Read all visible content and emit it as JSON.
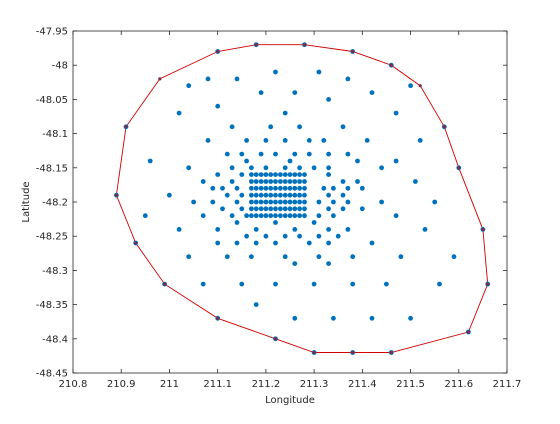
{
  "chart_data": {
    "type": "scatter",
    "title": "",
    "xlabel": "Longitude",
    "ylabel": "Latitude",
    "xlim": [
      210.8,
      211.7
    ],
    "ylim": [
      -48.45,
      -47.95
    ],
    "xticks": [
      "210.8",
      "210.9",
      "211",
      "211.1",
      "211.2",
      "211.3",
      "211.4",
      "211.5",
      "211.6",
      "211.7"
    ],
    "yticks": [
      "-47.95",
      "-48",
      "-48.05",
      "-48.1",
      "-48.15",
      "-48.2",
      "-48.25",
      "-48.3",
      "-48.35",
      "-48.4",
      "-48.45"
    ],
    "grid": false,
    "colors": {
      "points": "#0072BD",
      "hull": "#D00000",
      "axes": "#262626"
    },
    "series": [
      {
        "type": "scatter",
        "points": [
          [
            211.18,
            -47.97
          ],
          [
            211.28,
            -47.97
          ],
          [
            211.38,
            -47.98
          ],
          [
            211.1,
            -47.98
          ],
          [
            211.46,
            -48.0
          ],
          [
            211.22,
            -48.01
          ],
          [
            211.31,
            -48.01
          ],
          [
            211.08,
            -48.02
          ],
          [
            211.14,
            -48.02
          ],
          [
            211.37,
            -48.02
          ],
          [
            211.5,
            -48.03
          ],
          [
            211.04,
            -48.03
          ],
          [
            211.19,
            -48.04
          ],
          [
            211.26,
            -48.04
          ],
          [
            211.42,
            -48.04
          ],
          [
            211.1,
            -48.06
          ],
          [
            211.33,
            -48.05
          ],
          [
            211.02,
            -48.07
          ],
          [
            211.24,
            -48.07
          ],
          [
            211.47,
            -48.07
          ],
          [
            210.91,
            -48.09
          ],
          [
            211.57,
            -48.09
          ],
          [
            211.13,
            -48.09
          ],
          [
            211.21,
            -48.09
          ],
          [
            211.27,
            -48.09
          ],
          [
            211.36,
            -48.09
          ],
          [
            211.08,
            -48.11
          ],
          [
            211.16,
            -48.11
          ],
          [
            211.2,
            -48.11
          ],
          [
            211.24,
            -48.11
          ],
          [
            211.29,
            -48.11
          ],
          [
            211.32,
            -48.11
          ],
          [
            211.41,
            -48.11
          ],
          [
            211.52,
            -48.11
          ],
          [
            211.12,
            -48.13
          ],
          [
            211.15,
            -48.13
          ],
          [
            211.19,
            -48.13
          ],
          [
            211.22,
            -48.13
          ],
          [
            211.26,
            -48.13
          ],
          [
            211.29,
            -48.13
          ],
          [
            211.33,
            -48.13
          ],
          [
            211.37,
            -48.13
          ],
          [
            210.96,
            -48.14
          ],
          [
            211.16,
            -48.14
          ],
          [
            211.25,
            -48.14
          ],
          [
            211.39,
            -48.14
          ],
          [
            211.47,
            -48.14
          ],
          [
            211.04,
            -48.15
          ],
          [
            211.13,
            -48.15
          ],
          [
            211.17,
            -48.15
          ],
          [
            211.2,
            -48.15
          ],
          [
            211.24,
            -48.15
          ],
          [
            211.27,
            -48.15
          ],
          [
            211.3,
            -48.15
          ],
          [
            211.33,
            -48.15
          ],
          [
            211.44,
            -48.15
          ],
          [
            211.6,
            -48.15
          ],
          [
            211.07,
            -48.17
          ],
          [
            211.1,
            -48.16
          ],
          [
            211.13,
            -48.17
          ],
          [
            211.15,
            -48.16
          ],
          [
            211.33,
            -48.16
          ],
          [
            211.36,
            -48.17
          ],
          [
            211.39,
            -48.17
          ],
          [
            211.51,
            -48.17
          ],
          [
            211.09,
            -48.18
          ],
          [
            211.11,
            -48.18
          ],
          [
            211.14,
            -48.18
          ],
          [
            211.32,
            -48.18
          ],
          [
            211.34,
            -48.18
          ],
          [
            211.37,
            -48.18
          ],
          [
            211.4,
            -48.18
          ],
          [
            210.89,
            -48.19
          ],
          [
            211.0,
            -48.19
          ],
          [
            211.12,
            -48.19
          ],
          [
            211.15,
            -48.19
          ],
          [
            211.33,
            -48.19
          ],
          [
            211.36,
            -48.19
          ],
          [
            211.05,
            -48.2
          ],
          [
            211.09,
            -48.2
          ],
          [
            211.14,
            -48.2
          ],
          [
            211.31,
            -48.2
          ],
          [
            211.34,
            -48.2
          ],
          [
            211.37,
            -48.2
          ],
          [
            211.44,
            -48.2
          ],
          [
            211.55,
            -48.2
          ],
          [
            211.11,
            -48.21
          ],
          [
            211.15,
            -48.21
          ],
          [
            211.33,
            -48.21
          ],
          [
            211.36,
            -48.21
          ],
          [
            211.4,
            -48.21
          ],
          [
            210.95,
            -48.22
          ],
          [
            211.07,
            -48.22
          ],
          [
            211.13,
            -48.22
          ],
          [
            211.16,
            -48.22
          ],
          [
            211.31,
            -48.22
          ],
          [
            211.34,
            -48.22
          ],
          [
            211.47,
            -48.22
          ],
          [
            211.02,
            -48.24
          ],
          [
            211.1,
            -48.24
          ],
          [
            211.14,
            -48.23
          ],
          [
            211.18,
            -48.24
          ],
          [
            211.22,
            -48.23
          ],
          [
            211.26,
            -48.24
          ],
          [
            211.3,
            -48.23
          ],
          [
            211.33,
            -48.24
          ],
          [
            211.37,
            -48.24
          ],
          [
            211.53,
            -48.24
          ],
          [
            211.65,
            -48.24
          ],
          [
            211.16,
            -48.25
          ],
          [
            211.2,
            -48.25
          ],
          [
            211.24,
            -48.25
          ],
          [
            211.27,
            -48.25
          ],
          [
            211.31,
            -48.25
          ],
          [
            211.35,
            -48.25
          ],
          [
            210.93,
            -48.26
          ],
          [
            211.1,
            -48.26
          ],
          [
            211.14,
            -48.26
          ],
          [
            211.18,
            -48.26
          ],
          [
            211.22,
            -48.26
          ],
          [
            211.29,
            -48.26
          ],
          [
            211.33,
            -48.26
          ],
          [
            211.42,
            -48.26
          ],
          [
            211.04,
            -48.28
          ],
          [
            211.12,
            -48.28
          ],
          [
            211.17,
            -48.28
          ],
          [
            211.24,
            -48.28
          ],
          [
            211.31,
            -48.28
          ],
          [
            211.38,
            -48.28
          ],
          [
            211.48,
            -48.28
          ],
          [
            211.59,
            -48.28
          ],
          [
            211.26,
            -48.29
          ],
          [
            211.33,
            -48.29
          ],
          [
            211.07,
            -48.32
          ],
          [
            211.15,
            -48.32
          ],
          [
            211.22,
            -48.32
          ],
          [
            211.3,
            -48.32
          ],
          [
            211.38,
            -48.32
          ],
          [
            211.45,
            -48.32
          ],
          [
            211.56,
            -48.32
          ],
          [
            211.66,
            -48.32
          ],
          [
            211.18,
            -48.35
          ],
          [
            211.1,
            -48.37
          ],
          [
            211.26,
            -48.37
          ],
          [
            211.34,
            -48.37
          ],
          [
            211.42,
            -48.37
          ],
          [
            211.5,
            -48.37
          ],
          [
            210.99,
            -48.32
          ],
          [
            211.62,
            -48.39
          ],
          [
            211.22,
            -48.4
          ],
          [
            211.3,
            -48.42
          ],
          [
            211.38,
            -48.42
          ],
          [
            211.46,
            -48.42
          ]
        ],
        "cluster": {
          "x_range": [
            211.17,
            211.28
          ],
          "y_range": [
            -48.22,
            -48.16
          ],
          "x_step": 0.01,
          "y_step": 0.01
        }
      },
      {
        "type": "line",
        "closed": true,
        "points": [
          [
            210.89,
            -48.19
          ],
          [
            210.91,
            -48.09
          ],
          [
            210.98,
            -48.02
          ],
          [
            211.1,
            -47.98
          ],
          [
            211.18,
            -47.97
          ],
          [
            211.28,
            -47.97
          ],
          [
            211.38,
            -47.98
          ],
          [
            211.46,
            -48.0
          ],
          [
            211.52,
            -48.03
          ],
          [
            211.57,
            -48.09
          ],
          [
            211.6,
            -48.15
          ],
          [
            211.65,
            -48.24
          ],
          [
            211.66,
            -48.32
          ],
          [
            211.62,
            -48.39
          ],
          [
            211.46,
            -48.42
          ],
          [
            211.38,
            -48.42
          ],
          [
            211.3,
            -48.42
          ],
          [
            211.22,
            -48.4
          ],
          [
            211.1,
            -48.37
          ],
          [
            210.99,
            -48.32
          ],
          [
            210.93,
            -48.26
          ]
        ]
      }
    ]
  }
}
